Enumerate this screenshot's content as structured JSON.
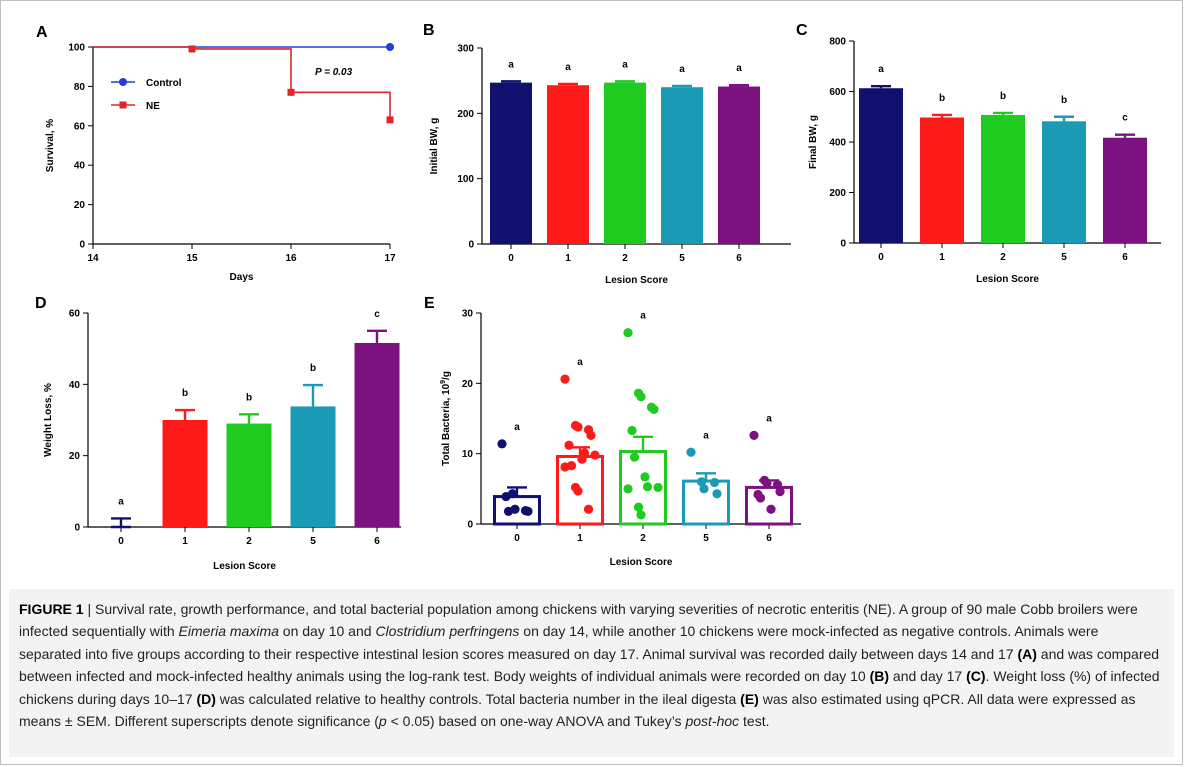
{
  "panels": {
    "A": "A",
    "B": "B",
    "C": "C",
    "D": "D",
    "E": "E"
  },
  "chart_data": [
    {
      "id": "A",
      "type": "line",
      "step": true,
      "xlabel": "Days",
      "ylabel": "Survival, %",
      "xlim": [
        14,
        17
      ],
      "ylim": [
        0,
        100
      ],
      "xticks": [
        "14",
        "15",
        "16",
        "17"
      ],
      "yticks": [
        "0",
        "20",
        "40",
        "60",
        "80",
        "100"
      ],
      "legend_position": "top-left",
      "annotation": "P = 0.03",
      "series": [
        {
          "name": "Control",
          "color": "#1f3fd6",
          "marker": "circle",
          "x": [
            14,
            15,
            16,
            17
          ],
          "y": [
            100,
            100,
            100,
            100
          ],
          "marked": [
            false,
            false,
            false,
            true
          ]
        },
        {
          "name": "NE",
          "color": "#e0262b",
          "marker": "square",
          "x": [
            14,
            15,
            16,
            17
          ],
          "y": [
            100,
            99,
            77,
            63
          ],
          "marked": [
            false,
            true,
            true,
            true
          ]
        }
      ]
    },
    {
      "id": "B",
      "type": "bar",
      "xlabel": "Lesion Score",
      "ylabel": "Initial BW, g",
      "ylim": [
        0,
        300
      ],
      "yticks": [
        "0",
        "100",
        "200",
        "300"
      ],
      "categories": [
        "0",
        "1",
        "2",
        "5",
        "6"
      ],
      "values": [
        247,
        243,
        247,
        240,
        241
      ],
      "errors": [
        2,
        2,
        2,
        2,
        2
      ],
      "letters": [
        "a",
        "a",
        "a",
        "a",
        "a"
      ],
      "colors": [
        "#10106e",
        "#ff1a1a",
        "#1ecb1e",
        "#1b9ab5",
        "#7c1180"
      ]
    },
    {
      "id": "C",
      "type": "bar",
      "xlabel": "Lesion Score",
      "ylabel": "Final BW, g",
      "ylim": [
        0,
        800
      ],
      "yticks": [
        "0",
        "200",
        "400",
        "600",
        "800"
      ],
      "categories": [
        "0",
        "1",
        "2",
        "5",
        "6"
      ],
      "values": [
        613,
        497,
        507,
        482,
        417
      ],
      "errors": [
        8,
        10,
        8,
        18,
        12
      ],
      "letters": [
        "a",
        "b",
        "b",
        "b",
        "c"
      ],
      "colors": [
        "#10106e",
        "#ff1a1a",
        "#1ecb1e",
        "#1b9ab5",
        "#7c1180"
      ]
    },
    {
      "id": "D",
      "type": "bar",
      "xlabel": "Lesion Score",
      "ylabel": "Weight Loss, %",
      "ylim": [
        0,
        60
      ],
      "yticks": [
        "0",
        "20",
        "40",
        "60"
      ],
      "categories": [
        "0",
        "1",
        "2",
        "5",
        "6"
      ],
      "values": [
        0,
        30,
        29,
        33.8,
        51.6
      ],
      "errors": [
        2.4,
        2.8,
        2.6,
        6,
        3.4
      ],
      "letters": [
        "a",
        "b",
        "b",
        "b",
        "c"
      ],
      "colors": [
        "#10106e",
        "#ff1a1a",
        "#1ecb1e",
        "#1b9ab5",
        "#7c1180"
      ]
    },
    {
      "id": "E",
      "type": "bar",
      "style": "hollow",
      "xlabel": "Lesion Score",
      "ylabel": "Total Bacteria, 10",
      "ylabel_sup": "9",
      "ylabel_tail": "/g",
      "ylim": [
        0,
        30
      ],
      "yticks": [
        "0",
        "10",
        "20",
        "30"
      ],
      "categories": [
        "0",
        "1",
        "2",
        "5",
        "6"
      ],
      "values": [
        3.9,
        9.6,
        10.3,
        6.1,
        5.2
      ],
      "errors": [
        1.3,
        1.3,
        2.1,
        1.1,
        1.0
      ],
      "letters": [
        "a",
        "a",
        "a",
        "a",
        "a"
      ],
      "colors": [
        "#10106e",
        "#ff1a1a",
        "#1ecb1e",
        "#1b9ab5",
        "#7c1180"
      ],
      "points": [
        [
          11.4,
          4.3,
          2.1,
          1.9,
          1.8,
          3.9,
          1.8
        ],
        [
          20.6,
          14.0,
          13.8,
          13.4,
          12.6,
          11.2,
          8.3,
          9.2,
          10.1,
          9.8,
          8.1,
          5.2,
          4.7,
          2.1
        ],
        [
          27.2,
          18.6,
          18.1,
          16.6,
          16.3,
          13.3,
          9.5,
          6.7,
          5.3,
          5.2,
          5.0,
          2.4,
          1.3
        ],
        [
          10.2,
          6.0,
          5.0,
          5.9,
          4.3
        ],
        [
          12.6,
          6.2,
          5.8,
          5.6,
          4.6,
          4.2,
          3.7,
          2.1
        ]
      ]
    }
  ],
  "caption": {
    "lead": "FIGURE 1",
    "sep": " | ",
    "t1": "Survival rate, growth performance, and total bacterial population among chickens with varying severities of necrotic enteritis (NE). A group of 90 male Cobb broilers were infected sequentially with ",
    "i1": "Eimeria maxima",
    "t2": " on day 10 and ",
    "i2": "Clostridium perfringens",
    "t3": " on day 14, while another 10 chickens were mock-infected as negative controls. Animals were separated into five groups according to their respective intestinal lesion scores measured on day 17. Animal survival was recorded daily between days 14 and 17 ",
    "bA": "(A)",
    "t4": " and was compared between infected and mock-infected healthy animals using the log-rank test. Body weights of individual animals were recorded on day 10 ",
    "bB": "(B)",
    "t5": " and day 17 ",
    "bC": "(C)",
    "t6": ". Weight loss (%) of infected chickens during days 10–17 ",
    "bD": "(D)",
    "t7": " was calculated relative to healthy controls. Total bacteria number in the ileal digesta ",
    "bE": "(E)",
    "t8": " was also estimated using qPCR. All data were expressed as means ± SEM. Different superscripts denote significance (",
    "i3": "p",
    "t9": " < 0.05) based on one-way ANOVA and Tukey’s ",
    "i4": "post-hoc",
    "t10": " test."
  }
}
